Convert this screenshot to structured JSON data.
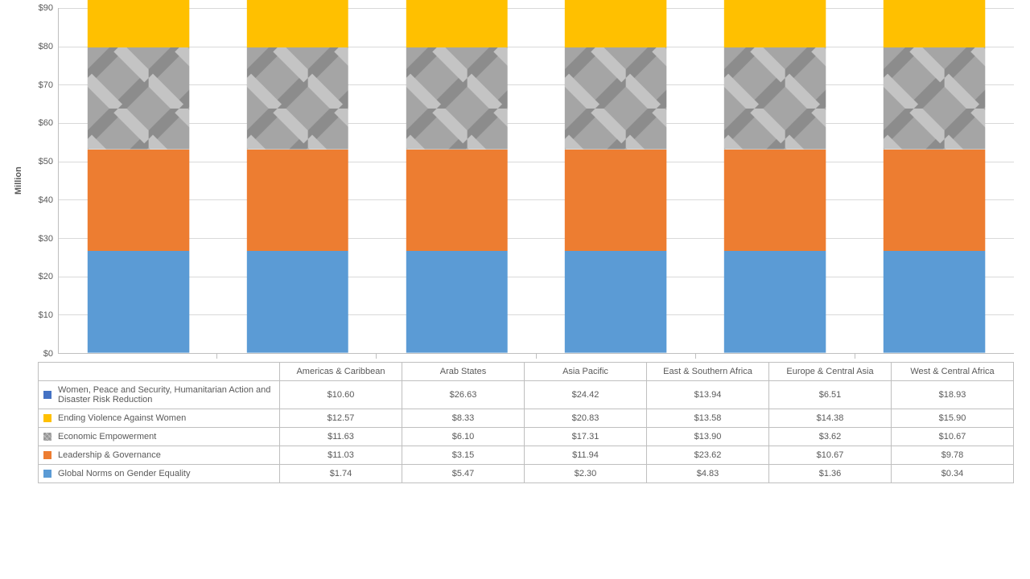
{
  "chart": {
    "type": "stacked-bar",
    "ylabel": "Million",
    "label_fontsize": 11,
    "ylim": [
      0,
      90
    ],
    "ytick_step": 10,
    "ytick_prefix": "$",
    "background_color": "#ffffff",
    "grid_color": "#d9d9d9",
    "axis_color": "#bfbfbf",
    "bar_width_pct": 64,
    "categories": [
      "Americas & Caribbean",
      "Arab States",
      "Asia Pacific",
      "East & Southern Africa",
      "Europe & Central Asia",
      "West & Central Africa"
    ],
    "series": [
      {
        "key": "global_norms",
        "label": "Global Norms on Gender Equality",
        "color": "#5b9bd5",
        "pattern": "none",
        "values": [
          1.74,
          5.47,
          2.3,
          4.83,
          1.36,
          0.34
        ]
      },
      {
        "key": "leadership",
        "label": "Leadership & Governance",
        "color": "#ed7d31",
        "pattern": "none",
        "values": [
          11.03,
          3.15,
          11.94,
          23.62,
          10.67,
          9.78
        ]
      },
      {
        "key": "economic",
        "label": "Economic Empowerment",
        "color": "#a5a5a5",
        "pattern": "weave",
        "values": [
          11.63,
          6.1,
          17.31,
          13.9,
          3.62,
          10.67
        ]
      },
      {
        "key": "evaw",
        "label": "Ending Violence Against Women",
        "color": "#ffc000",
        "pattern": "none",
        "values": [
          12.57,
          8.33,
          20.83,
          13.58,
          14.38,
          15.9
        ]
      },
      {
        "key": "wps",
        "label": "Women, Peace and Security, Humanitarian Action and Disaster Risk Reduction",
        "color": "#4472c4",
        "pattern": "none",
        "values": [
          10.6,
          26.63,
          24.42,
          13.94,
          6.51,
          18.93
        ]
      }
    ],
    "value_prefix": "$",
    "value_decimals": 2
  }
}
